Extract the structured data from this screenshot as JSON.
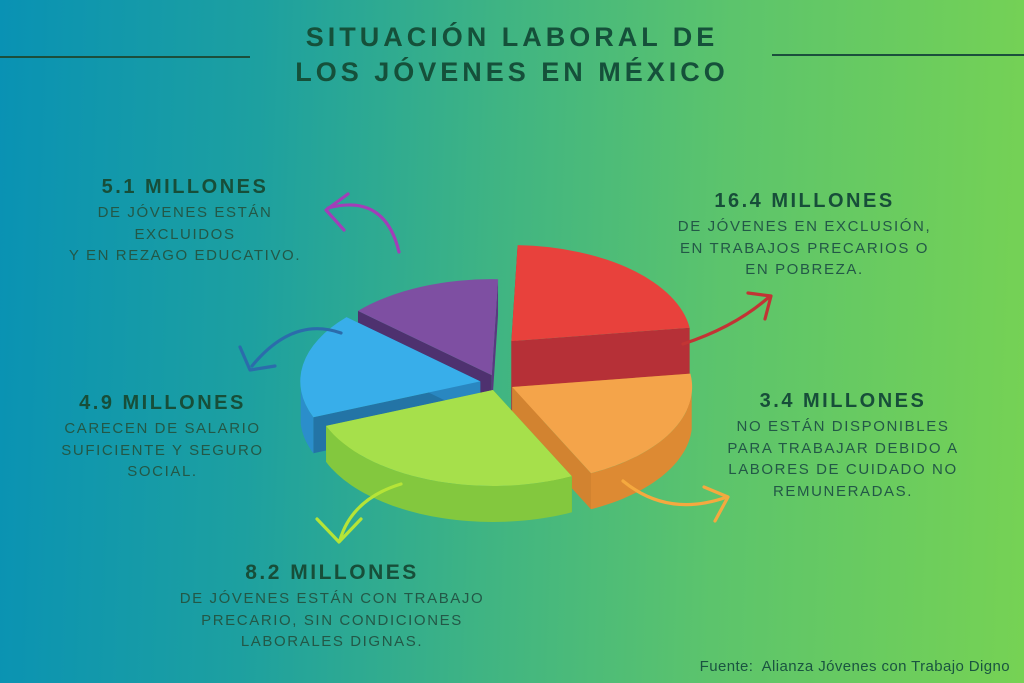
{
  "title": {
    "line1": "SITUACIÓN LABORAL DE",
    "line2": "LOS JÓVENES EN MÉXICO"
  },
  "source": "Fuente:  Alianza Jóvenes con Trabajo Digno",
  "callouts": [
    {
      "id": "rezago",
      "headline": "5.1 MILLONES",
      "lines": [
        "DE JÓVENES ESTÁN",
        "EXCLUIDOS",
        "Y EN REZAGO EDUCATIVO."
      ]
    },
    {
      "id": "exclusion",
      "headline": "16.4 MILLONES",
      "lines": [
        "DE JÓVENES EN EXCLUSIÓN,",
        "EN TRABAJOS PRECARIOS O",
        "EN POBREZA."
      ]
    },
    {
      "id": "salario",
      "headline": "4.9 MILLONES",
      "lines": [
        "CARECEN DE SALARIO",
        "SUFICIENTE Y SEGURO",
        "SOCIAL."
      ]
    },
    {
      "id": "cuidados",
      "headline": "3.4 MILLONES",
      "lines": [
        "NO ESTÁN DISPONIBLES",
        "PARA TRABAJAR DEBIDO A",
        "LABORES DE CUIDADO NO",
        "REMUNERADAS."
      ]
    },
    {
      "id": "precario",
      "headline": "8.2 MILLONES",
      "lines": [
        "DE JÓVENES ESTÁN CON TRABAJO",
        "PRECARIO, SIN CONDICIONES",
        "LABORALES DIGNAS."
      ]
    }
  ],
  "chart_data": {
    "type": "pie",
    "title": "Situación laboral de los jóvenes en México",
    "values_unit": "millones de jóvenes",
    "legend_position": "callouts-around-pie",
    "style": "3d-exploded",
    "slices": [
      {
        "id": "exclusion",
        "name": "Jóvenes en exclusión, en trabajos precarios o en pobreza",
        "value": 16.4,
        "color": "#e8413c",
        "side": "#c0333a",
        "arrow": "#c23434",
        "start": 272,
        "end": 352,
        "explode": 20,
        "raise": 34
      },
      {
        "id": "cuidados",
        "name": "No están disponibles para trabajar debido a labores de cuidado no remuneradas",
        "value": 3.4,
        "color": "#f4a44a",
        "side": "#dd8a33",
        "arrow": "#f5a93f",
        "start": 352,
        "end": 424,
        "explode": 16,
        "raise": 0
      },
      {
        "id": "precario",
        "name": "Jóvenes con trabajo precario, sin condiciones laborales dignas",
        "value": 8.2,
        "color": "#a6e04b",
        "side": "#83c83e",
        "arrow": "#b5e437",
        "start": 64,
        "end": 158,
        "explode": 14,
        "raise": 0
      },
      {
        "id": "salario",
        "name": "Carecen de salario suficiente y seguro social",
        "value": 4.9,
        "color": "#38aeea",
        "side": "#2b8ecb",
        "arrow": "#2b6cab",
        "start": 158,
        "end": 222,
        "explode": 18,
        "raise": 0
      },
      {
        "id": "rezago",
        "name": "Jóvenes excluidos y en rezago educativo",
        "value": 5.1,
        "color": "#7e4fa2",
        "side": "#5f3c87",
        "arrow": "#a23eb8",
        "start": 222,
        "end": 272,
        "explode": 16,
        "raise": 0
      }
    ],
    "colors": {
      "background_left": "#0992b4",
      "background_right": "#76d254",
      "text": "#17513b"
    }
  }
}
